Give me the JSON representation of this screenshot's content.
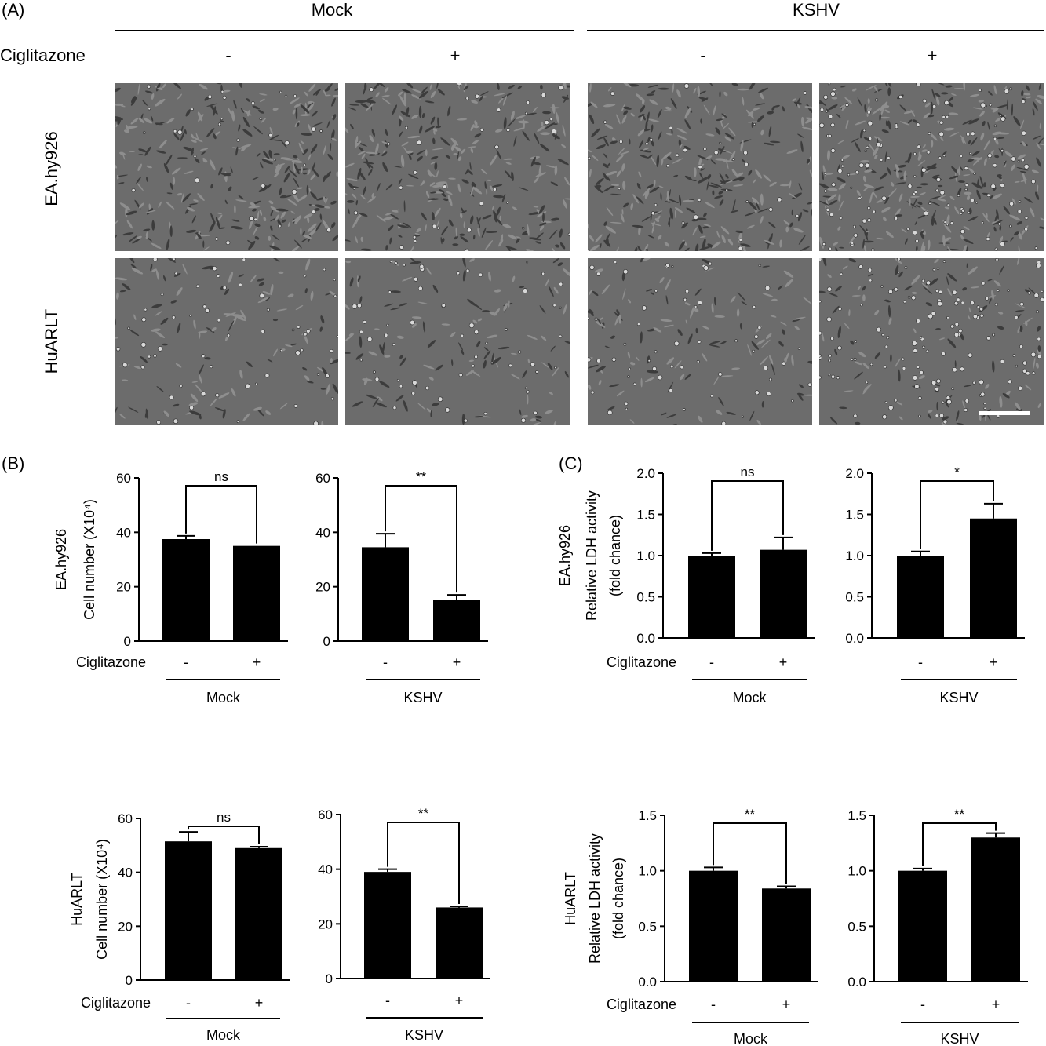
{
  "panel_labels": {
    "a": "(A)",
    "b": "(B)",
    "c": "(C)"
  },
  "panel_a": {
    "group_mock": "Mock",
    "group_kshv": "KSHV",
    "treatment_label": "Ciglitazone",
    "signs": [
      "-",
      "+",
      "-",
      "+"
    ],
    "row_labels": [
      "EA.hy926",
      "HuARLT"
    ]
  },
  "chart_data": [
    {
      "type": "bar",
      "panel": "B",
      "cell_line": "EA.hy926",
      "group": "Mock",
      "categories": [
        "-",
        "+"
      ],
      "values": [
        37.5,
        35
      ],
      "errors": [
        1.2,
        0
      ],
      "ylabel_lines": [
        "EA.hy926",
        "Cell number (X10⁴)"
      ],
      "ylim": [
        0,
        60
      ],
      "yticks": [
        "0",
        "20",
        "40",
        "60"
      ],
      "xlabel_prefix": "Ciglitazone",
      "group_label": "Mock",
      "significance": "ns"
    },
    {
      "type": "bar",
      "panel": "B",
      "cell_line": "EA.hy926",
      "group": "KSHV",
      "categories": [
        "-",
        "+"
      ],
      "values": [
        34.5,
        15
      ],
      "errors": [
        5,
        2
      ],
      "ylim": [
        0,
        60
      ],
      "yticks": [
        "0",
        "20",
        "40",
        "60"
      ],
      "group_label": "KSHV",
      "significance": "**"
    },
    {
      "type": "bar",
      "panel": "C",
      "cell_line": "EA.hy926",
      "group": "Mock",
      "categories": [
        "-",
        "+"
      ],
      "values": [
        1.0,
        1.07
      ],
      "errors": [
        0.03,
        0.15
      ],
      "ylabel_lines": [
        "EA.hy926",
        "Relative LDH activity",
        "(fold chance)"
      ],
      "ylim": [
        0,
        2.0
      ],
      "yticks": [
        "0.0",
        "0.5",
        "1.0",
        "1.5",
        "2.0"
      ],
      "xlabel_prefix": "Ciglitazone",
      "group_label": "Mock",
      "significance": "ns"
    },
    {
      "type": "bar",
      "panel": "C",
      "cell_line": "EA.hy926",
      "group": "KSHV",
      "categories": [
        "-",
        "+"
      ],
      "values": [
        1.0,
        1.45
      ],
      "errors": [
        0.05,
        0.18
      ],
      "ylim": [
        0,
        2.0
      ],
      "yticks": [
        "0.0",
        "0.5",
        "1.0",
        "1.5",
        "2.0"
      ],
      "group_label": "KSHV",
      "significance": "*"
    },
    {
      "type": "bar",
      "panel": "B",
      "cell_line": "HuARLT",
      "group": "Mock",
      "categories": [
        "-",
        "+"
      ],
      "values": [
        51.5,
        49
      ],
      "errors": [
        3.5,
        0.5
      ],
      "ylabel_lines": [
        "HuARLT",
        "Cell number (X10⁴)"
      ],
      "ylim": [
        0,
        60
      ],
      "yticks": [
        "0",
        "20",
        "40",
        "60"
      ],
      "xlabel_prefix": "Ciglitazone",
      "group_label": "Mock",
      "significance": "ns"
    },
    {
      "type": "bar",
      "panel": "B",
      "cell_line": "HuARLT",
      "group": "KSHV",
      "categories": [
        "-",
        "+"
      ],
      "values": [
        39,
        26
      ],
      "errors": [
        1,
        0.4
      ],
      "ylim": [
        0,
        60
      ],
      "yticks": [
        "0",
        "20",
        "40",
        "60"
      ],
      "group_label": "KSHV",
      "significance": "**"
    },
    {
      "type": "bar",
      "panel": "C",
      "cell_line": "HuARLT",
      "group": "Mock",
      "categories": [
        "-",
        "+"
      ],
      "values": [
        1.0,
        0.84
      ],
      "errors": [
        0.03,
        0.02
      ],
      "ylabel_lines": [
        "HuARLT",
        "Relative LDH activity",
        "(fold chance)"
      ],
      "ylim": [
        0,
        1.5
      ],
      "yticks": [
        "0.0",
        "0.5",
        "1.0",
        "1.5"
      ],
      "xlabel_prefix": "Ciglitazone",
      "group_label": "Mock",
      "significance": "**"
    },
    {
      "type": "bar",
      "panel": "C",
      "cell_line": "HuARLT",
      "group": "KSHV",
      "categories": [
        "-",
        "+"
      ],
      "values": [
        1.0,
        1.3
      ],
      "errors": [
        0.02,
        0.04
      ],
      "ylim": [
        0,
        1.5
      ],
      "yticks": [
        "0.0",
        "0.5",
        "1.0",
        "1.5"
      ],
      "group_label": "KSHV",
      "significance": "**"
    }
  ]
}
